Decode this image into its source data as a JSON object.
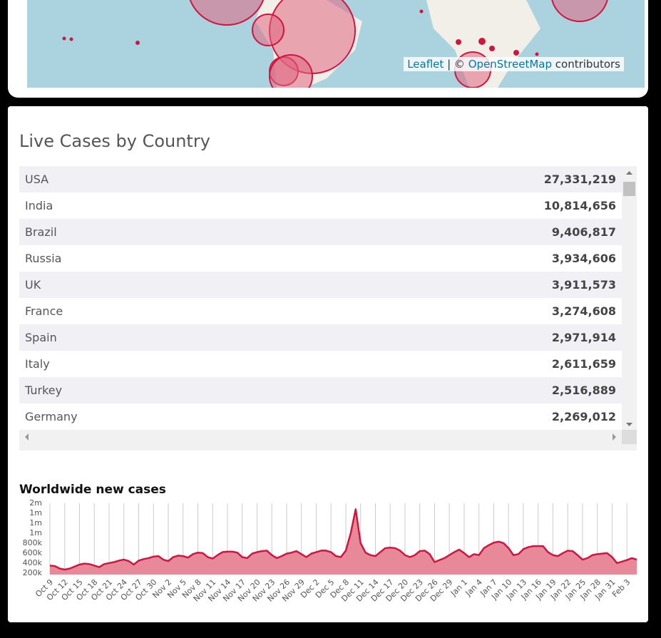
{
  "map": {
    "attribution": {
      "leaflet": "Leaflet",
      "separator": "| ©",
      "osm": "OpenStreetMap",
      "suffix": "contributors"
    }
  },
  "table": {
    "title": "Live Cases by Country",
    "rows": [
      [
        "USA",
        "27,331,219"
      ],
      [
        "India",
        "10,814,656"
      ],
      [
        "Brazil",
        "9,406,817"
      ],
      [
        "Russia",
        "3,934,606"
      ],
      [
        "UK",
        "3,911,573"
      ],
      [
        "France",
        "3,274,608"
      ],
      [
        "Spain",
        "2,971,914"
      ],
      [
        "Italy",
        "2,611,659"
      ],
      [
        "Turkey",
        "2,516,889"
      ],
      [
        "Germany",
        "2,269,012"
      ]
    ]
  },
  "chart_data": {
    "type": "area",
    "title": "Worldwide new cases",
    "color": "#d0163f",
    "fill": "#e8899a",
    "categories": [
      "Oct 9",
      null,
      null,
      "Oct 12",
      null,
      null,
      "Oct 15",
      null,
      null,
      "Oct 18",
      null,
      null,
      "Oct 21",
      null,
      null,
      "Oct 24",
      null,
      null,
      "Oct 27",
      null,
      null,
      "Oct 30",
      null,
      null,
      "Nov 2",
      null,
      null,
      "Nov 5",
      null,
      null,
      "Nov 8",
      null,
      null,
      "Nov 11",
      null,
      null,
      "Nov 14",
      null,
      null,
      "Nov 17",
      null,
      null,
      "Nov 20",
      null,
      null,
      "Nov 23",
      null,
      null,
      "Nov 26",
      null,
      null,
      "Nov 29",
      null,
      null,
      "Dec 2",
      null,
      null,
      "Dec 5",
      null,
      null,
      "Dec 8",
      null,
      null,
      "Dec 11",
      null,
      null,
      "Dec 14",
      null,
      null,
      "Dec 17",
      null,
      null,
      "Dec 20",
      null,
      null,
      "Dec 23",
      null,
      null,
      "Dec 26",
      null,
      null,
      "Dec 29",
      null,
      null,
      "Jan 1",
      null,
      null,
      "Jan 4",
      null,
      null,
      "Jan 7",
      null,
      null,
      "Jan 10",
      null,
      null,
      "Jan 13",
      null,
      null,
      "Jan 16",
      null,
      null,
      "Jan 19",
      null,
      null,
      "Jan 22",
      null,
      null,
      "Jan 25",
      null,
      null,
      "Jan 28",
      null,
      null,
      "Jan 31",
      null,
      null,
      "Feb 3",
      null,
      null
    ],
    "values": [
      350000,
      340000,
      290000,
      270000,
      290000,
      330000,
      370000,
      390000,
      380000,
      350000,
      320000,
      380000,
      400000,
      420000,
      450000,
      470000,
      440000,
      370000,
      450000,
      480000,
      500000,
      530000,
      540000,
      470000,
      440000,
      520000,
      550000,
      540000,
      510000,
      580000,
      610000,
      600000,
      520000,
      490000,
      560000,
      620000,
      630000,
      630000,
      610000,
      520000,
      500000,
      590000,
      620000,
      640000,
      650000,
      560000,
      500000,
      540000,
      590000,
      610000,
      640000,
      580000,
      520000,
      590000,
      620000,
      650000,
      650000,
      620000,
      540000,
      520000,
      650000,
      1000000,
      1480000,
      800000,
      610000,
      560000,
      540000,
      620000,
      700000,
      710000,
      700000,
      650000,
      560000,
      520000,
      560000,
      640000,
      650000,
      580000,
      420000,
      460000,
      500000,
      560000,
      620000,
      670000,
      600000,
      520000,
      580000,
      560000,
      700000,
      760000,
      810000,
      830000,
      800000,
      700000,
      560000,
      580000,
      680000,
      720000,
      740000,
      740000,
      740000,
      620000,
      560000,
      540000,
      600000,
      650000,
      640000,
      560000,
      470000,
      500000,
      560000,
      580000,
      590000,
      600000,
      520000,
      400000,
      430000,
      460000,
      500000,
      470000
    ],
    "ylim": [
      170000,
      1600000
    ],
    "yticks": [
      {
        "value": 200000,
        "label": "200k"
      },
      {
        "value": 400000,
        "label": "400k"
      },
      {
        "value": 600000,
        "label": "600k"
      },
      {
        "value": 800000,
        "label": "800k"
      },
      {
        "value": 1000000,
        "label": "1m"
      },
      {
        "value": 1200000,
        "label": "1m"
      },
      {
        "value": 1400000,
        "label": "1m"
      },
      {
        "value": 1600000,
        "label": "2m"
      }
    ],
    "grid": true
  }
}
